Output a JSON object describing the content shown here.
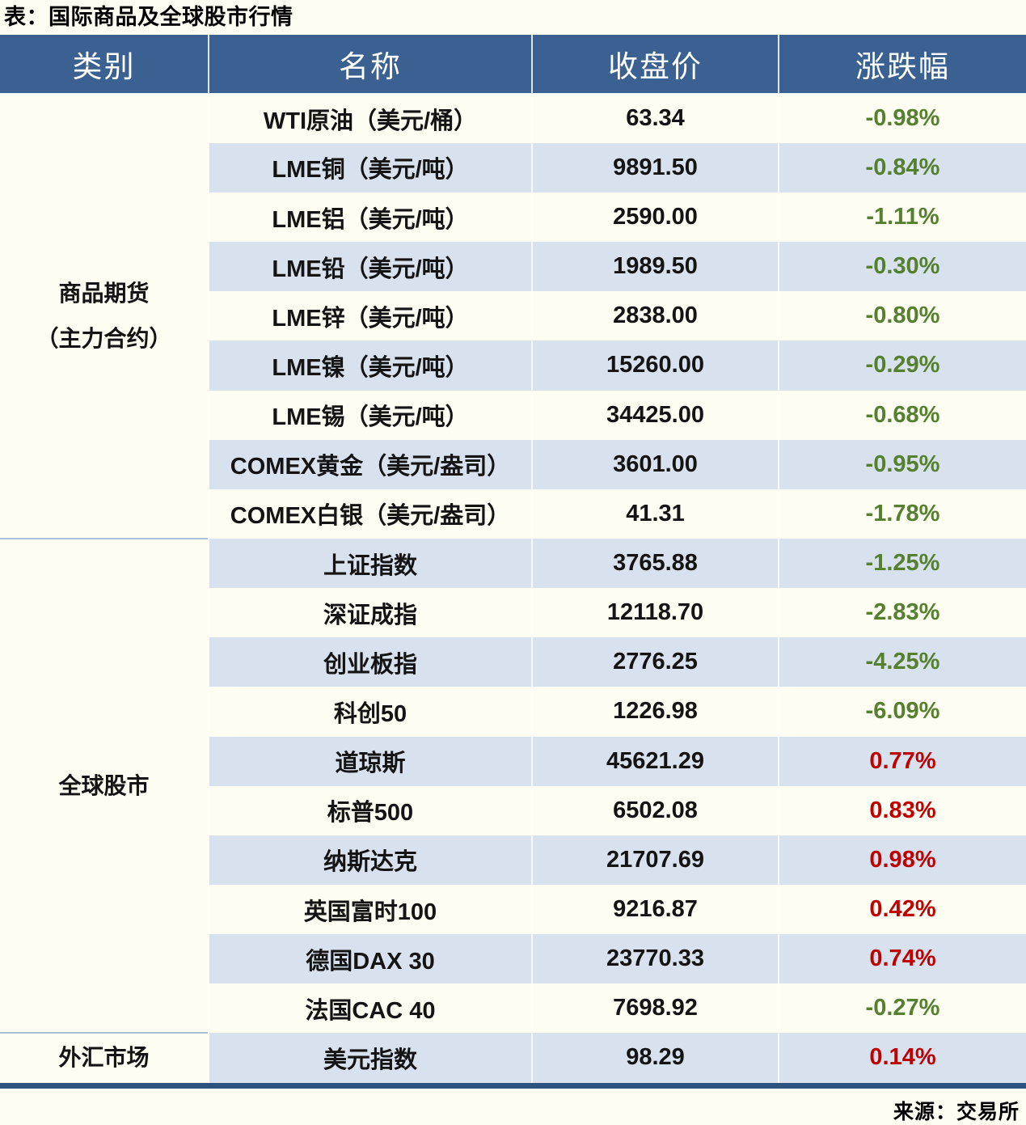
{
  "page": {
    "title": "表：国际商品及全球股市行情",
    "source": "来源：交易所"
  },
  "colors": {
    "header_bg": "#3A6191",
    "row_plain": "#FDFDF1",
    "row_stripe": "#D8E1EE",
    "up_red": "#C00000",
    "down_green": "#54802F",
    "bottom_rule": "#2C5380"
  },
  "table": {
    "headers": [
      "类别",
      "名称",
      "收盘价",
      "涨跌幅"
    ],
    "groups": [
      {
        "category_lines": [
          "商品期货",
          "（主力合约）"
        ],
        "rows": [
          {
            "name": "WTI原油（美元/桶）",
            "close": "63.34",
            "change": "-0.98%"
          },
          {
            "name": "LME铜（美元/吨）",
            "close": "9891.50",
            "change": "-0.84%"
          },
          {
            "name": "LME铝（美元/吨）",
            "close": "2590.00",
            "change": "-1.11%"
          },
          {
            "name": "LME铅（美元/吨）",
            "close": "1989.50",
            "change": "-0.30%"
          },
          {
            "name": "LME锌（美元/吨）",
            "close": "2838.00",
            "change": "-0.80%"
          },
          {
            "name": "LME镍（美元/吨）",
            "close": "15260.00",
            "change": "-0.29%"
          },
          {
            "name": "LME锡（美元/吨）",
            "close": "34425.00",
            "change": "-0.68%"
          },
          {
            "name": "COMEX黄金（美元/盎司）",
            "close": "3601.00",
            "change": "-0.95%"
          },
          {
            "name": "COMEX白银（美元/盎司）",
            "close": "41.31",
            "change": "-1.78%"
          }
        ]
      },
      {
        "category_lines": [
          "全球股市"
        ],
        "rows": [
          {
            "name": "上证指数",
            "close": "3765.88",
            "change": "-1.25%"
          },
          {
            "name": "深证成指",
            "close": "12118.70",
            "change": "-2.83%"
          },
          {
            "name": "创业板指",
            "close": "2776.25",
            "change": "-4.25%"
          },
          {
            "name": "科创50",
            "close": "1226.98",
            "change": "-6.09%"
          },
          {
            "name": "道琼斯",
            "close": "45621.29",
            "change": "0.77%"
          },
          {
            "name": "标普500",
            "close": "6502.08",
            "change": "0.83%"
          },
          {
            "name": "纳斯达克",
            "close": "21707.69",
            "change": "0.98%"
          },
          {
            "name": "英国富时100",
            "close": "9216.87",
            "change": "0.42%"
          },
          {
            "name": "德国DAX 30",
            "close": "23770.33",
            "change": "0.74%"
          },
          {
            "name": "法国CAC 40",
            "close": "7698.92",
            "change": "-0.27%"
          }
        ]
      },
      {
        "category_lines": [
          "外汇市场"
        ],
        "rows": [
          {
            "name": "美元指数",
            "close": "98.29",
            "change": "0.14%"
          }
        ]
      }
    ]
  },
  "chart_data": {
    "type": "table",
    "title": "表：国际商品及全球股市行情",
    "source": "来源：交易所",
    "columns": [
      "类别",
      "名称",
      "收盘价",
      "涨跌幅"
    ],
    "rows": [
      [
        "商品期货（主力合约）",
        "WTI原油（美元/桶）",
        63.34,
        "-0.98%"
      ],
      [
        "商品期货（主力合约）",
        "LME铜（美元/吨）",
        9891.5,
        "-0.84%"
      ],
      [
        "商品期货（主力合约）",
        "LME铝（美元/吨）",
        2590.0,
        "-1.11%"
      ],
      [
        "商品期货（主力合约）",
        "LME铅（美元/吨）",
        1989.5,
        "-0.30%"
      ],
      [
        "商品期货（主力合约）",
        "LME锌（美元/吨）",
        2838.0,
        "-0.80%"
      ],
      [
        "商品期货（主力合约）",
        "LME镍（美元/吨）",
        15260.0,
        "-0.29%"
      ],
      [
        "商品期货（主力合约）",
        "LME锡（美元/吨）",
        34425.0,
        "-0.68%"
      ],
      [
        "商品期货（主力合约）",
        "COMEX黄金（美元/盎司）",
        3601.0,
        "-0.95%"
      ],
      [
        "商品期货（主力合约）",
        "COMEX白银（美元/盎司）",
        41.31,
        "-1.78%"
      ],
      [
        "全球股市",
        "上证指数",
        3765.88,
        "-1.25%"
      ],
      [
        "全球股市",
        "深证成指",
        12118.7,
        "-2.83%"
      ],
      [
        "全球股市",
        "创业板指",
        2776.25,
        "-4.25%"
      ],
      [
        "全球股市",
        "科创50",
        1226.98,
        "-6.09%"
      ],
      [
        "全球股市",
        "道琼斯",
        45621.29,
        "0.77%"
      ],
      [
        "全球股市",
        "标普500",
        6502.08,
        "0.83%"
      ],
      [
        "全球股市",
        "纳斯达克",
        21707.69,
        "0.98%"
      ],
      [
        "全球股市",
        "英国富时100",
        9216.87,
        "0.42%"
      ],
      [
        "全球股市",
        "德国DAX 30",
        23770.33,
        "0.74%"
      ],
      [
        "全球股市",
        "法国CAC 40",
        7698.92,
        "-0.27%"
      ],
      [
        "外汇市场",
        "美元指数",
        98.29,
        "0.14%"
      ]
    ],
    "value_color_rule": "negative change = green #54802F, positive change = red #C00000"
  }
}
